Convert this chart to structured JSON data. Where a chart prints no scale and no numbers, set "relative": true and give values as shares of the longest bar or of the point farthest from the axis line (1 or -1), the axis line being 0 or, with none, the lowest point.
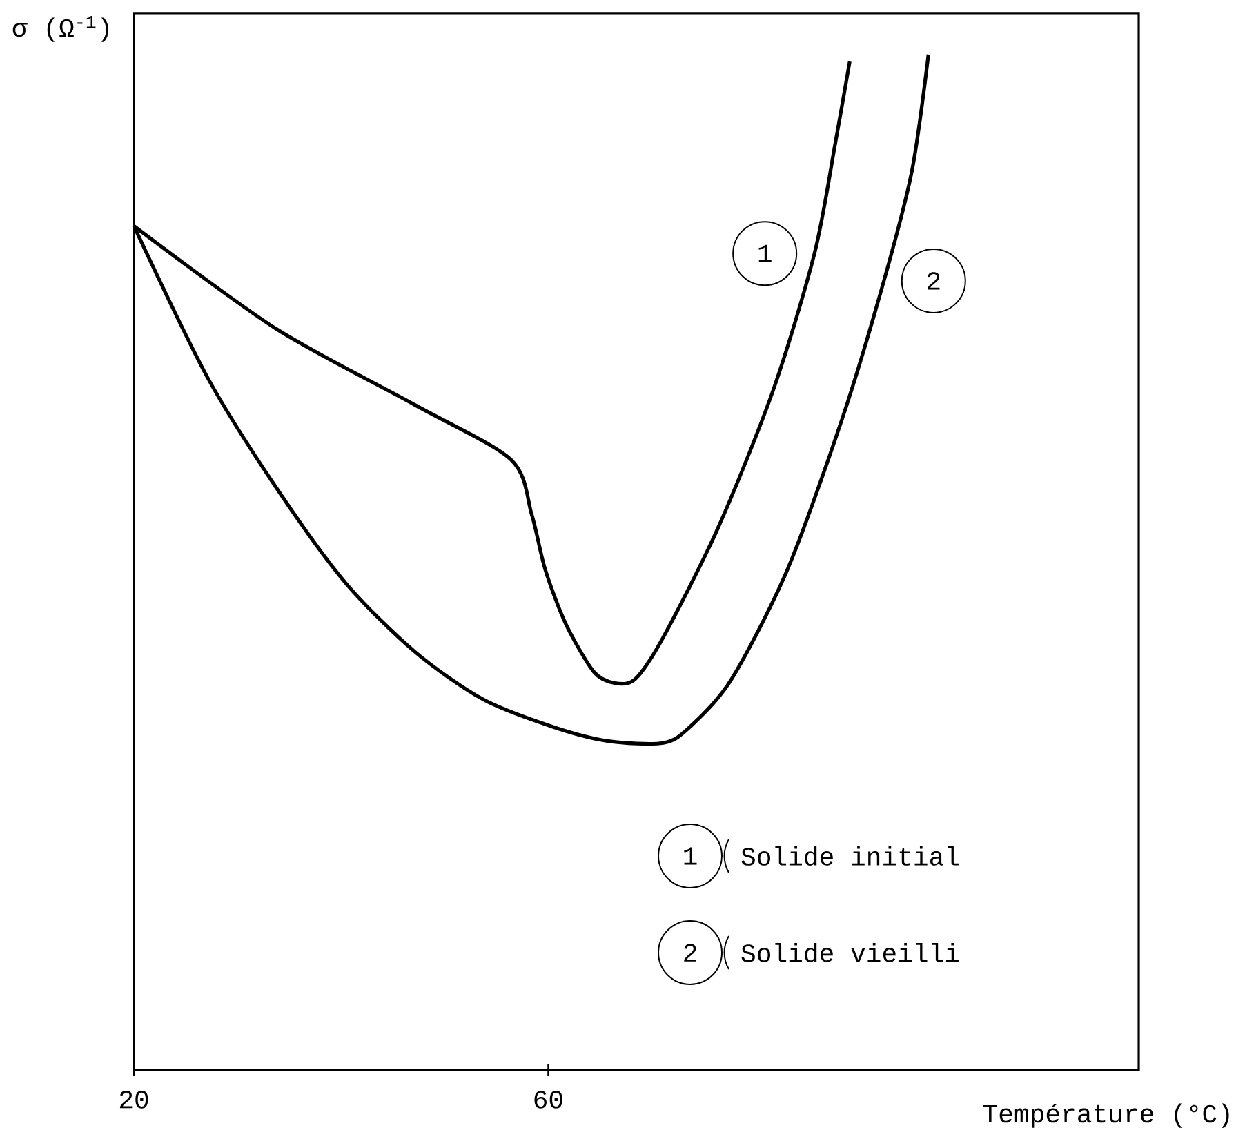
{
  "chart_data": {
    "type": "line",
    "relative": true,
    "xlabel": "Température (°C)",
    "ylabel": "σ (Ω$^{-1}$)",
    "xlim": [
      20,
      117
    ],
    "xticks": [
      20,
      60
    ],
    "legend": "bottom right",
    "marker": "none",
    "line_style": "solid",
    "series": [
      {
        "name": "Solide initial",
        "color": "#000000",
        "x": [
          20,
          33.7,
          47.1,
          56.4,
          58.4,
          59.7,
          61.7,
          64.4,
          66.4,
          68.4,
          71.1,
          76.4,
          81.7,
          85.7,
          87.7,
          89.1
        ],
        "values": [
          0.831,
          0.73,
          0.655,
          0.601,
          0.547,
          0.493,
          0.439,
          0.392,
          0.381,
          0.385,
          0.426,
          0.534,
          0.669,
          0.804,
          0.912,
          0.993
        ]
      },
      {
        "name": "Solide vieilli",
        "color": "#000000",
        "x": [
          20,
          27.1,
          33.7,
          40.4,
          47.1,
          53.7,
          60.4,
          65.7,
          71.1,
          73.7,
          77.7,
          83.1,
          88.4,
          92.4,
          95.1,
          96.7
        ],
        "values": [
          0.831,
          0.682,
          0.574,
          0.48,
          0.412,
          0.365,
          0.338,
          0.324,
          0.322,
          0.338,
          0.385,
          0.493,
          0.642,
          0.777,
          0.885,
          1.0
        ]
      }
    ],
    "annotations": [
      "1",
      "2"
    ]
  }
}
